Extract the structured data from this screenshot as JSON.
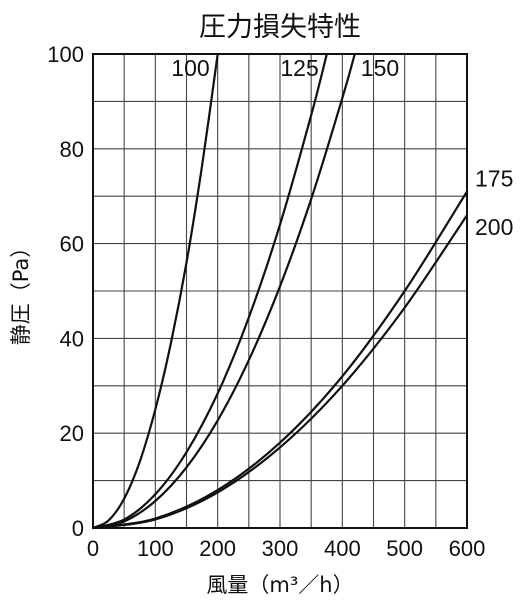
{
  "chart_data": {
    "type": "line",
    "title": "圧力損失特性",
    "xlabel": "風量（m³／h）",
    "ylabel": "静圧（Pa）",
    "xlim": [
      0,
      600
    ],
    "ylim": [
      0,
      100
    ],
    "xticks": [
      "0",
      "100",
      "200",
      "300",
      "400",
      "500",
      "600"
    ],
    "yticks": [
      "0",
      "20",
      "40",
      "60",
      "80",
      "100"
    ],
    "grid": true,
    "series": [
      {
        "name": "100",
        "x": [
          0,
          25,
          50,
          75,
          100,
          125,
          150,
          175,
          200
        ],
        "y": [
          0,
          1.6,
          6.2,
          14.0,
          25.0,
          39.0,
          56.0,
          76.5,
          100
        ]
      },
      {
        "name": "125",
        "x": [
          0,
          50,
          100,
          150,
          200,
          250,
          300,
          350,
          375
        ],
        "y": [
          0,
          1.8,
          7.1,
          16.0,
          28.4,
          44.4,
          64.0,
          87.1,
          100
        ]
      },
      {
        "name": "150",
        "x": [
          0,
          50,
          100,
          150,
          200,
          250,
          300,
          350,
          400,
          420
        ],
        "y": [
          0,
          1.4,
          5.7,
          12.8,
          22.7,
          35.4,
          51.0,
          69.4,
          90.7,
          100
        ]
      },
      {
        "name": "175",
        "x": [
          0,
          100,
          200,
          300,
          400,
          500,
          600
        ],
        "y": [
          0,
          2.0,
          8.0,
          18.0,
          32.0,
          50.0,
          71.0
        ]
      },
      {
        "name": "200",
        "x": [
          0,
          100,
          200,
          300,
          400,
          500,
          600
        ],
        "y": [
          0,
          1.8,
          7.5,
          17.0,
          30.0,
          46.5,
          66.0
        ]
      }
    ]
  }
}
